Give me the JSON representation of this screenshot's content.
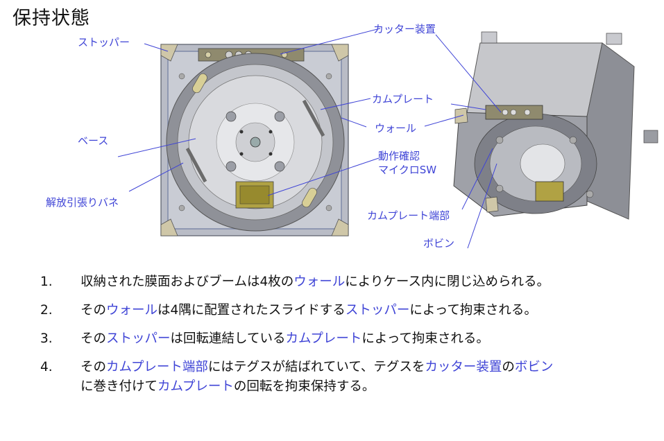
{
  "title": "保持状態",
  "callouts": {
    "stopper": "ストッパー",
    "cutter": "カッター装置",
    "cam_plate": "カムプレート",
    "wall": "ウォール",
    "base": "ベース",
    "switch_line1": "動作確認",
    "switch_line2": "マイクロSW",
    "spring": "解放引張りバネ",
    "cam_end": "カムプレート端部",
    "bobbin": "ボビン"
  },
  "steps": [
    {
      "num": "1.",
      "segments": [
        {
          "text": "収納された膜面およびブームは4枚の",
          "hl": false
        },
        {
          "text": "ウォール",
          "hl": true
        },
        {
          "text": "によりケース内に閉じ込められる。",
          "hl": false
        }
      ]
    },
    {
      "num": "2.",
      "segments": [
        {
          "text": "その",
          "hl": false
        },
        {
          "text": "ウォール",
          "hl": true
        },
        {
          "text": "は4隅に配置されたスライドする",
          "hl": false
        },
        {
          "text": "ストッパー",
          "hl": true
        },
        {
          "text": "によって拘束される。",
          "hl": false
        }
      ]
    },
    {
      "num": "3.",
      "segments": [
        {
          "text": "その",
          "hl": false
        },
        {
          "text": "ストッパー",
          "hl": true
        },
        {
          "text": "は回転連結している",
          "hl": false
        },
        {
          "text": "カムプレート",
          "hl": true
        },
        {
          "text": "によって拘束される。",
          "hl": false
        }
      ]
    },
    {
      "num": "4.",
      "segments": [
        {
          "text": "その",
          "hl": false
        },
        {
          "text": "カムプレート端部",
          "hl": true
        },
        {
          "text": "にはテグスが結ばれていて、テグスを",
          "hl": false
        },
        {
          "text": "カッター装置",
          "hl": true
        },
        {
          "text": "の",
          "hl": false
        },
        {
          "text": "ボビン",
          "hl": true
        },
        {
          "text": "に巻き付けて",
          "hl": false
        },
        {
          "text": "カムプレート",
          "hl": true
        },
        {
          "text": "の回転を拘束保持する。",
          "hl": false
        }
      ]
    }
  ],
  "colors": {
    "accent": "#3f44d6",
    "frame": "#8a8d96",
    "plate": "#9a9ca3",
    "wall": "#7f8aa8"
  }
}
